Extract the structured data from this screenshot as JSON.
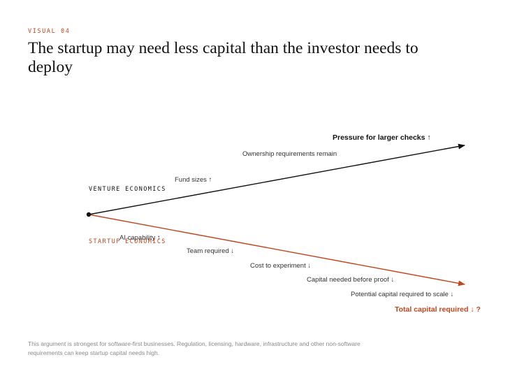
{
  "kicker": "VISUAL 04",
  "title": "The startup may need less capital than the investor needs to deploy",
  "colors": {
    "investor": "#111111",
    "startup": "#c2461c",
    "footnote": "#8a8a8a"
  },
  "diagram": {
    "venture_label": "VENTURE ECONOMICS",
    "startup_label": "STARTUP ECONOMICS",
    "venture_points": [
      {
        "text": "Fund sizes ↑"
      },
      {
        "text": "Ownership requirements remain"
      },
      {
        "text": "Pressure for larger checks ↑"
      }
    ],
    "startup_points": [
      {
        "text": "AI capability ↑"
      },
      {
        "text": "Team required ↓"
      },
      {
        "text": "Cost to experiment ↓"
      },
      {
        "text": "Capital needed before proof ↓"
      },
      {
        "text": "Potential capital required to scale ↓"
      },
      {
        "text": "Total capital required ↓ ?"
      }
    ]
  },
  "footnote": "This argument is strongest for software-first businesses. Regulation, licensing, hardware, infrastructure and other non-software requirements can keep startup capital needs high."
}
